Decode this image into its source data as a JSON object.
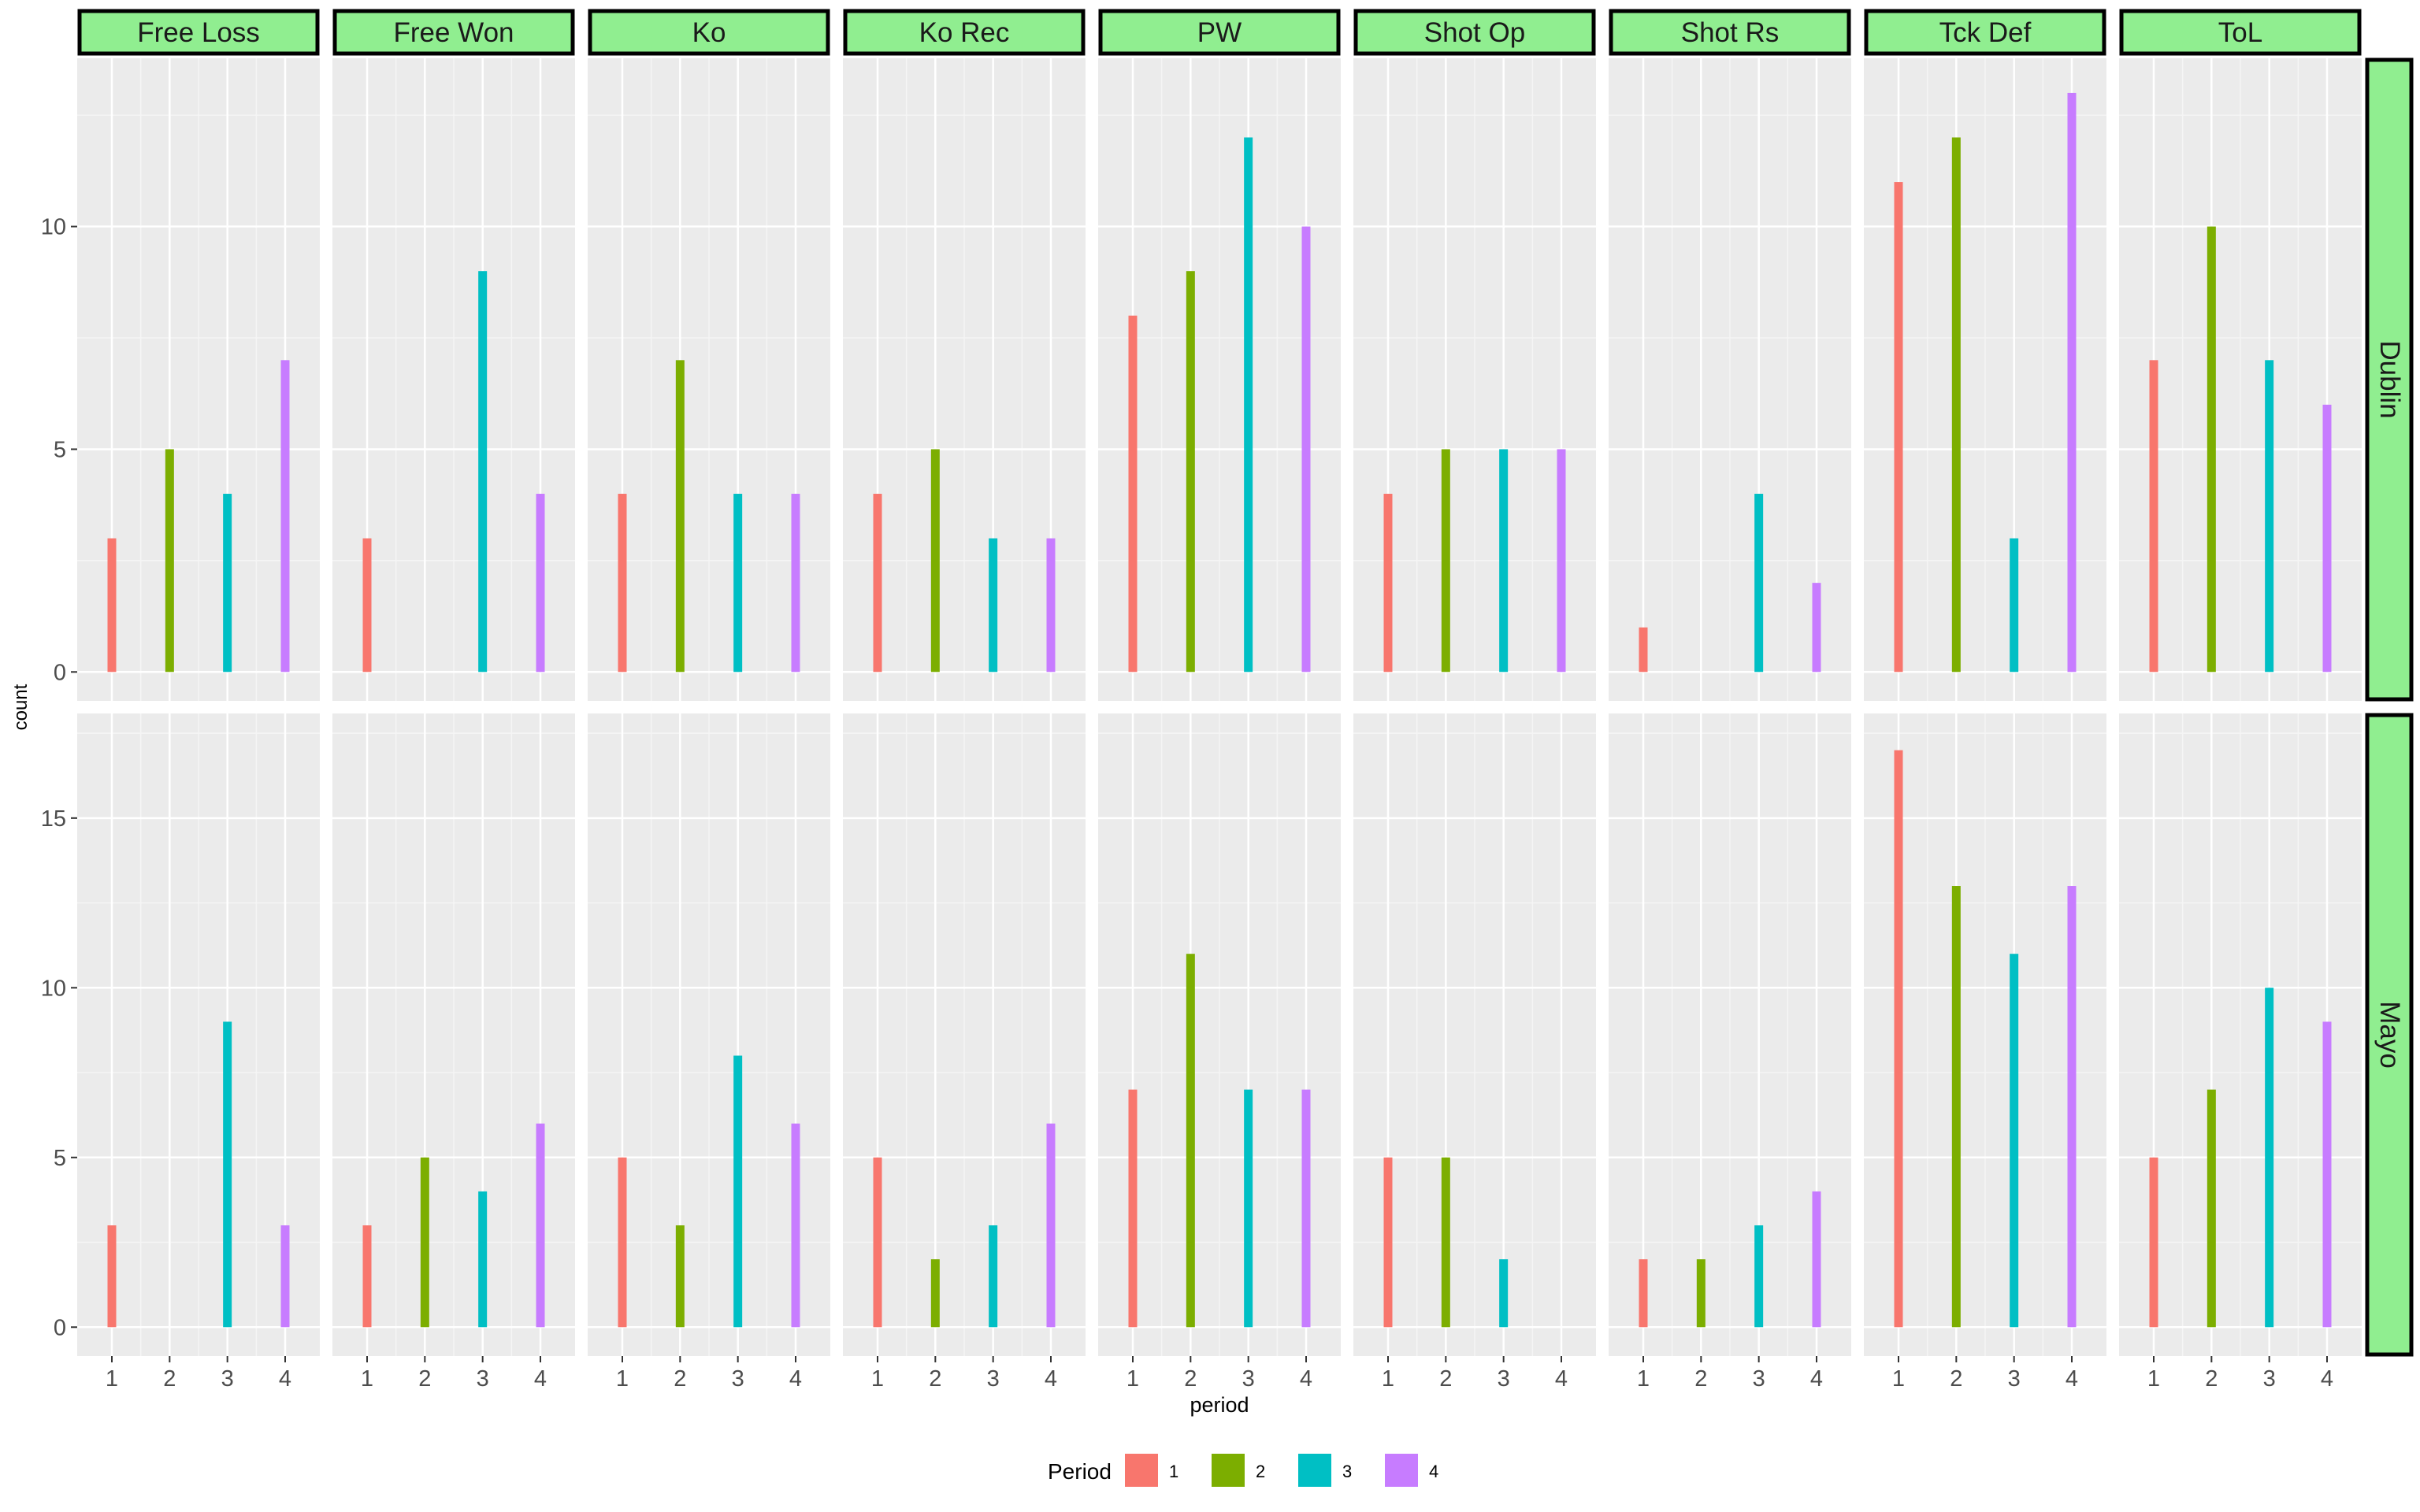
{
  "chart_data": {
    "type": "bar",
    "title": "",
    "xlabel": "period",
    "ylabel": "count",
    "x": [
      1,
      2,
      3,
      4
    ],
    "facet_columns": [
      "Free Loss",
      "Free Won",
      "Ko",
      "Ko Rec",
      "PW",
      "Shot Op",
      "Shot Rs",
      "Tck Def",
      "ToL"
    ],
    "facet_rows": [
      {
        "name": "Dublin",
        "ylim": [
          0,
          13.6
        ],
        "yticks": [
          0,
          5,
          10
        ],
        "values": [
          [
            3,
            5,
            4,
            7
          ],
          [
            3,
            0,
            9,
            4
          ],
          [
            4,
            7,
            4,
            4
          ],
          [
            4,
            5,
            3,
            3
          ],
          [
            8,
            9,
            12,
            10
          ],
          [
            4,
            5,
            5,
            5
          ],
          [
            1,
            0,
            4,
            2
          ],
          [
            11,
            12,
            3,
            13
          ],
          [
            7,
            10,
            7,
            6
          ]
        ]
      },
      {
        "name": "Mayo",
        "ylim": [
          0,
          17.85
        ],
        "yticks": [
          0,
          5,
          10,
          15
        ],
        "values": [
          [
            3,
            0,
            9,
            3
          ],
          [
            3,
            5,
            4,
            6
          ],
          [
            5,
            3,
            8,
            6
          ],
          [
            5,
            2,
            3,
            6
          ],
          [
            7,
            11,
            7,
            7
          ],
          [
            5,
            5,
            2,
            0
          ],
          [
            2,
            2,
            3,
            4
          ],
          [
            17,
            13,
            11,
            13
          ],
          [
            5,
            7,
            10,
            9
          ]
        ]
      }
    ],
    "grid": true,
    "legend": {
      "title": "Period",
      "position": "bottom",
      "entries": [
        {
          "label": "1",
          "color": "#F8766D"
        },
        {
          "label": "2",
          "color": "#7CAE00"
        },
        {
          "label": "3",
          "color": "#00BFC4"
        },
        {
          "label": "4",
          "color": "#C77CFF"
        }
      ]
    },
    "strip_color": "#90EE90",
    "panel_color": "#EBEBEB"
  }
}
